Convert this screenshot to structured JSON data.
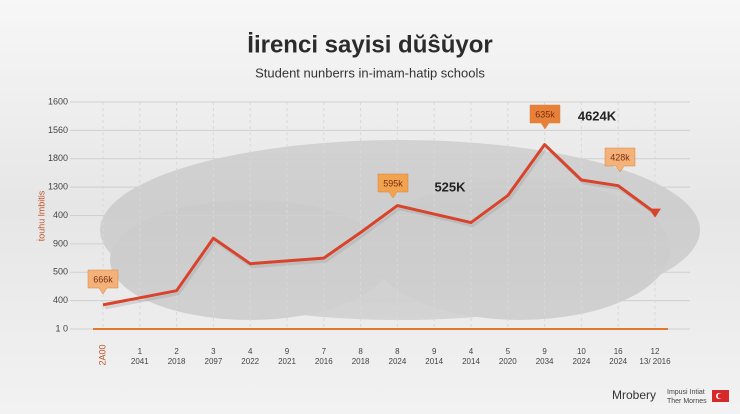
{
  "chart_data": {
    "type": "line",
    "title": "İirenci sayisi dŭŝŭyor",
    "subtitle": "Student nunberrs in-imam-hatip schools",
    "y_label": "ṫouhu lmbitis",
    "categories": [
      [
        "2A00"
      ],
      [
        "1",
        "2041"
      ],
      [
        "2",
        "2018"
      ],
      [
        "3",
        "2097"
      ],
      [
        "4",
        "2022"
      ],
      [
        "9",
        "2021"
      ],
      [
        "7",
        "2016"
      ],
      [
        "8",
        "2018"
      ],
      [
        "8",
        "2024"
      ],
      [
        "9",
        "2014"
      ],
      [
        "4",
        "2014"
      ],
      [
        "5",
        "2020"
      ],
      [
        "9",
        "2034"
      ],
      [
        "10",
        "2024"
      ],
      [
        "16",
        "2024"
      ],
      [
        "12",
        "13/ 2016"
      ]
    ],
    "series": [
      {
        "color": "#d8432b",
        "values": [
          0.85,
          1.1,
          1.35,
          3.2,
          2.3,
          2.4,
          2.5,
          3.4,
          4.35,
          4.05,
          3.75,
          4.7,
          6.5,
          5.25,
          5.05,
          4.1
        ]
      }
    ],
    "ylim": [
      0,
      8
    ],
    "yticks": [
      {
        "value": 0,
        "label": "1 0"
      },
      {
        "value": 1,
        "label": "400"
      },
      {
        "value": 2,
        "label": "500"
      },
      {
        "value": 3,
        "label": "900"
      },
      {
        "value": 4,
        "label": "400"
      },
      {
        "value": 5,
        "label": "1300"
      },
      {
        "value": 6,
        "label": "1800"
      },
      {
        "value": 7,
        "label": "1560"
      },
      {
        "value": 8,
        "label": "1600"
      }
    ],
    "grid": true,
    "annotations": [
      "666k",
      "595k",
      "525K",
      "635k",
      "4624K",
      "428k"
    ],
    "footer_brand": "Mrobery",
    "footer_note": [
      "Impusi Intiat",
      "Ther Mornes"
    ]
  }
}
